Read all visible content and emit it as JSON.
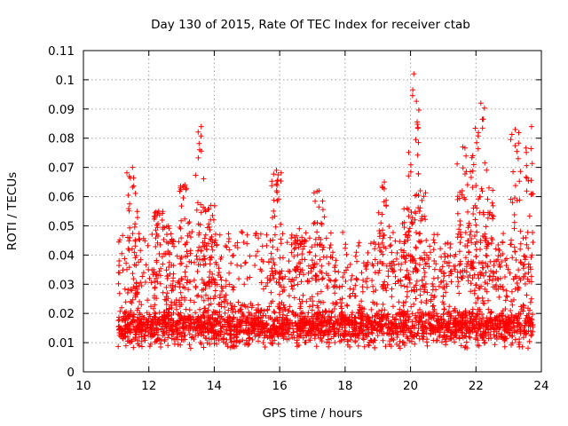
{
  "chart_data": {
    "type": "scatter",
    "title": "Day 130 of 2015, Rate Of TEC Index for receiver ctab",
    "xlabel": "GPS time / hours",
    "ylabel": "ROTI / TECUs",
    "xlim": [
      10,
      24
    ],
    "ylim": [
      0,
      0.11
    ],
    "xticks": [
      10,
      12,
      14,
      16,
      18,
      20,
      22,
      24
    ],
    "xtick_labels": [
      "10",
      "12",
      "14",
      "16",
      "18",
      "20",
      "22",
      "24"
    ],
    "yticks": [
      0,
      0.01,
      0.02,
      0.03,
      0.04,
      0.05,
      0.06,
      0.07,
      0.08,
      0.09,
      0.1,
      0.11
    ],
    "ytick_labels": [
      "0",
      "0.01",
      "0.02",
      "0.03",
      "0.04",
      "0.05",
      "0.06",
      "0.07",
      "0.08",
      "0.09",
      "0.1",
      "0.11"
    ],
    "grid": true,
    "marker": "+",
    "color": "#ff0000",
    "series": [
      {
        "name": "ROTI",
        "x_range": [
          11.05,
          23.75
        ],
        "typical_range": [
          0.005,
          0.035
        ],
        "peaks": [
          {
            "x": 11.5,
            "y": 0.07
          },
          {
            "x": 12.3,
            "y": 0.055
          },
          {
            "x": 12.6,
            "y": 0.05
          },
          {
            "x": 13.1,
            "y": 0.064
          },
          {
            "x": 13.6,
            "y": 0.084
          },
          {
            "x": 13.9,
            "y": 0.057
          },
          {
            "x": 15.9,
            "y": 0.069
          },
          {
            "x": 16.6,
            "y": 0.049
          },
          {
            "x": 17.2,
            "y": 0.062
          },
          {
            "x": 19.2,
            "y": 0.065
          },
          {
            "x": 19.9,
            "y": 0.056
          },
          {
            "x": 20.1,
            "y": 0.102
          },
          {
            "x": 20.3,
            "y": 0.062
          },
          {
            "x": 21.6,
            "y": 0.077
          },
          {
            "x": 21.9,
            "y": 0.074
          },
          {
            "x": 22.15,
            "y": 0.092
          },
          {
            "x": 22.4,
            "y": 0.063
          },
          {
            "x": 23.2,
            "y": 0.083
          },
          {
            "x": 23.7,
            "y": 0.084
          }
        ]
      }
    ]
  }
}
